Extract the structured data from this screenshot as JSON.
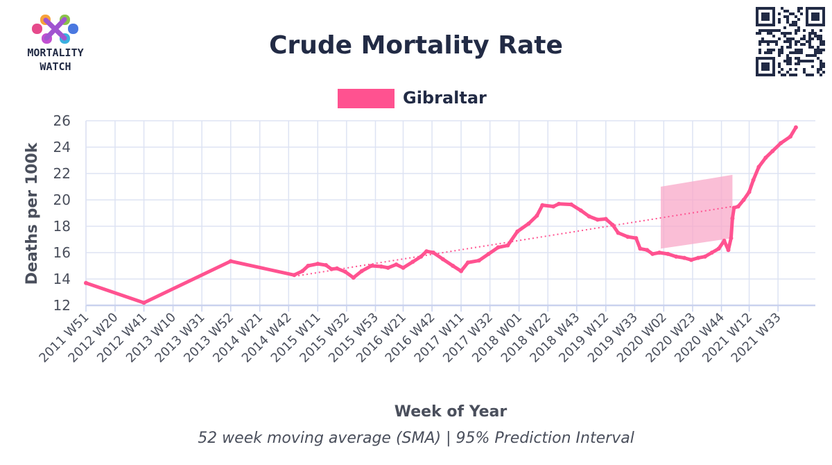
{
  "header": {
    "logo_line1": "MORTALITY",
    "logo_line2": "WATCH",
    "qr_icon": "qr-code-icon"
  },
  "colors": {
    "series": "#ff5290",
    "band": "#f8a8c8",
    "grid": "#dde3f3",
    "axis": "#c9d2ee",
    "title": "#222b45",
    "text": "#4a4f5c"
  },
  "chart_data": {
    "type": "line",
    "title": "Crude Mortality Rate",
    "subtitle": "52 week moving average (SMA) | 95% Prediction Interval",
    "xlabel": "Week of Year",
    "ylabel": "Deaths per 100k",
    "ylim": [
      12,
      26
    ],
    "yticks": [
      12,
      14,
      16,
      18,
      20,
      22,
      24,
      26
    ],
    "grid": true,
    "legend_placement": "top-center",
    "xtick_labels": [
      "2011 W51",
      "2012 W20",
      "2012 W41",
      "2013 W10",
      "2013 W31",
      "2013 W52",
      "2014 W21",
      "2014 W42",
      "2015 W11",
      "2015 W32",
      "2015 W53",
      "2016 W21",
      "2016 W42",
      "2017 W11",
      "2017 W32",
      "2018 W01",
      "2018 W22",
      "2018 W43",
      "2019 W12",
      "2019 W33",
      "2020 W02",
      "2020 W23",
      "2020 W44",
      "2021 W12",
      "2021 W33"
    ],
    "x_range": [
      "2011 W51",
      "2022 W08"
    ],
    "series": [
      {
        "name": "Gibraltar",
        "style": "line",
        "points": [
          [
            "2011 W51",
            13.7
          ],
          [
            "2012 W41",
            12.2
          ],
          [
            "2013 W52",
            15.35
          ],
          [
            "2014 W46",
            14.3
          ],
          [
            "2014 W52",
            14.6
          ],
          [
            "2015 W04",
            15.0
          ],
          [
            "2015 W11",
            15.15
          ],
          [
            "2015 W17",
            15.05
          ],
          [
            "2015 W21",
            14.75
          ],
          [
            "2015 W25",
            14.8
          ],
          [
            "2015 W31",
            14.55
          ],
          [
            "2015 W37",
            14.1
          ],
          [
            "2015 W43",
            14.6
          ],
          [
            "2015 W50",
            15.0
          ],
          [
            "2016 W05",
            14.95
          ],
          [
            "2016 W10",
            14.85
          ],
          [
            "2016 W16",
            15.1
          ],
          [
            "2016 W21",
            14.85
          ],
          [
            "2016 W28",
            15.3
          ],
          [
            "2016 W34",
            15.7
          ],
          [
            "2016 W38",
            16.1
          ],
          [
            "2016 W43",
            16.0
          ],
          [
            "2016 W50",
            15.5
          ],
          [
            "2017 W05",
            15.0
          ],
          [
            "2017 W11",
            14.6
          ],
          [
            "2017 W16",
            15.25
          ],
          [
            "2017 W24",
            15.4
          ],
          [
            "2017 W31",
            15.9
          ],
          [
            "2017 W38",
            16.4
          ],
          [
            "2017 W45",
            16.55
          ],
          [
            "2017 W52",
            17.6
          ],
          [
            "2018 W08",
            18.2
          ],
          [
            "2018 W14",
            18.8
          ],
          [
            "2018 W18",
            19.6
          ],
          [
            "2018 W26",
            19.5
          ],
          [
            "2018 W30",
            19.7
          ],
          [
            "2018 W39",
            19.65
          ],
          [
            "2018 W46",
            19.2
          ],
          [
            "2018 W52",
            18.75
          ],
          [
            "2019 W06",
            18.5
          ],
          [
            "2019 W12",
            18.55
          ],
          [
            "2019 W17",
            18.1
          ],
          [
            "2019 W21",
            17.5
          ],
          [
            "2019 W28",
            17.2
          ],
          [
            "2019 W34",
            17.1
          ],
          [
            "2019 W37",
            16.3
          ],
          [
            "2019 W42",
            16.2
          ],
          [
            "2019 W46",
            15.9
          ],
          [
            "2019 W51",
            16.0
          ],
          [
            "2020 W05",
            15.9
          ],
          [
            "2020 W11",
            15.7
          ],
          [
            "2020 W17",
            15.6
          ],
          [
            "2020 W22",
            15.45
          ],
          [
            "2020 W27",
            15.6
          ],
          [
            "2020 W32",
            15.7
          ],
          [
            "2020 W37",
            16.0
          ],
          [
            "2020 W42",
            16.3
          ],
          [
            "2020 W46",
            16.9
          ],
          [
            "2020 W49",
            16.2
          ],
          [
            "2020 W51",
            17.1
          ],
          [
            "2020 W52",
            18.6
          ],
          [
            "2021 W01",
            19.4
          ],
          [
            "2021 W04",
            19.5
          ],
          [
            "2021 W08",
            20.0
          ],
          [
            "2021 W12",
            20.6
          ],
          [
            "2021 W15",
            21.5
          ],
          [
            "2021 W19",
            22.5
          ],
          [
            "2021 W24",
            23.2
          ],
          [
            "2021 W29",
            23.7
          ],
          [
            "2021 W35",
            24.3
          ],
          [
            "2021 W42",
            24.8
          ],
          [
            "2021 W46",
            25.5
          ]
        ]
      },
      {
        "style": "dotted-trend",
        "points": [
          [
            "2014 W46",
            14.2
          ],
          [
            "2020 W52",
            19.5
          ]
        ]
      }
    ],
    "band": {
      "points": [
        [
          "2019 W52",
          16.3,
          21.0
        ],
        [
          "2020 W52",
          17.1,
          21.9
        ]
      ]
    }
  }
}
